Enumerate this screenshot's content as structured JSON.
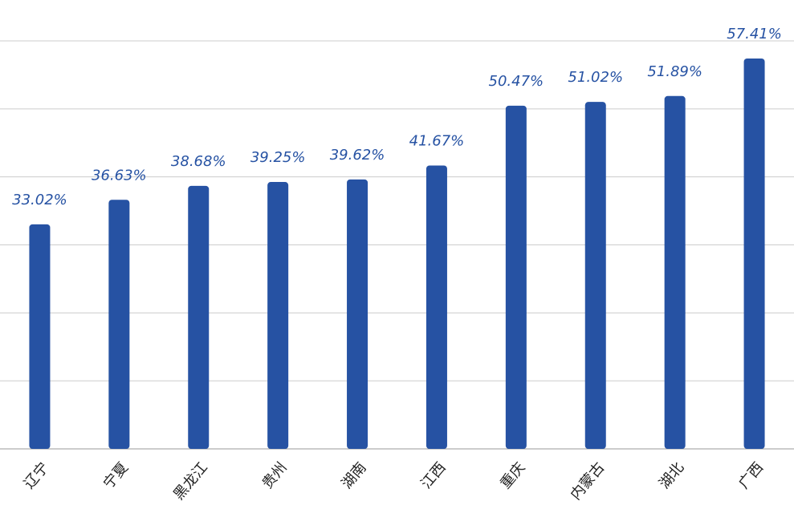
{
  "chart_data": {
    "type": "bar",
    "categories": [
      "辽宁",
      "宁夏",
      "黑龙江",
      "贵州",
      "湖南",
      "江西",
      "重庆",
      "内蒙古",
      "湖北",
      "广西"
    ],
    "values": [
      33.02,
      36.63,
      38.68,
      39.25,
      39.62,
      41.67,
      50.47,
      51.02,
      51.89,
      57.41
    ],
    "value_labels": [
      "33.02%",
      "36.63%",
      "38.68%",
      "39.25%",
      "39.62%",
      "41.67%",
      "50.47%",
      "51.02%",
      "51.89%",
      "57.41%"
    ],
    "color": "#2652a3",
    "ylim": [
      0,
      60
    ],
    "yticks": [
      0,
      10,
      20,
      30,
      40,
      50,
      60
    ],
    "grid": true
  }
}
